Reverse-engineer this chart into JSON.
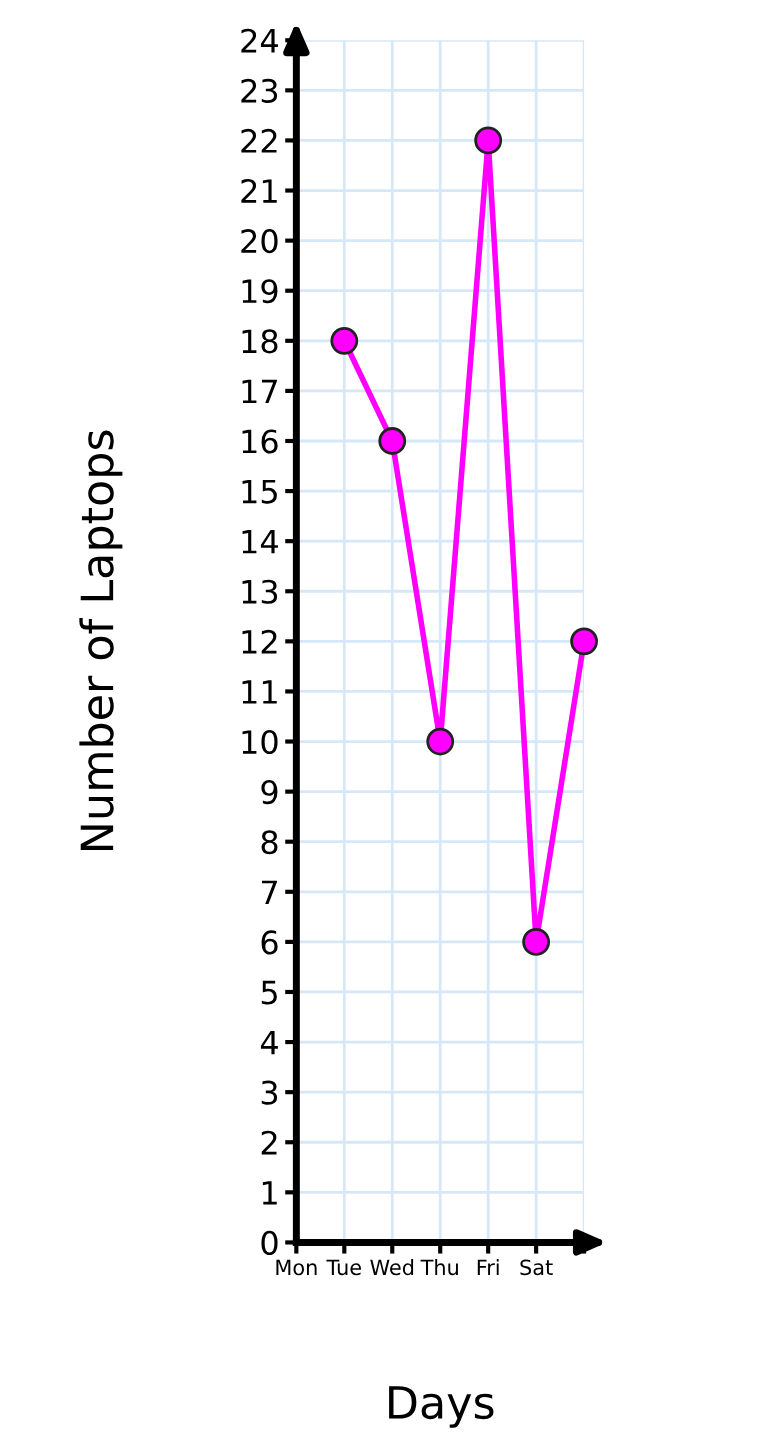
{
  "chart_data": {
    "type": "line",
    "xlabel": "Days",
    "ylabel": "Number of Laptops",
    "categories": [
      "Mon",
      "Tue",
      "Wed",
      "Thu",
      "Fri",
      "Sat",
      null
    ],
    "series": [
      {
        "color": "#ff00ff",
        "values": [
          null,
          18,
          16,
          10,
          22,
          6,
          12
        ]
      }
    ],
    "ylim": [
      0,
      24
    ],
    "yticks": [
      0,
      1,
      2,
      3,
      4,
      5,
      6,
      7,
      8,
      9,
      10,
      11,
      12,
      13,
      14,
      15,
      16,
      17,
      18,
      19,
      20,
      21,
      22,
      23,
      24
    ],
    "grid": true,
    "marker": "circle",
    "line_style": "solid"
  }
}
